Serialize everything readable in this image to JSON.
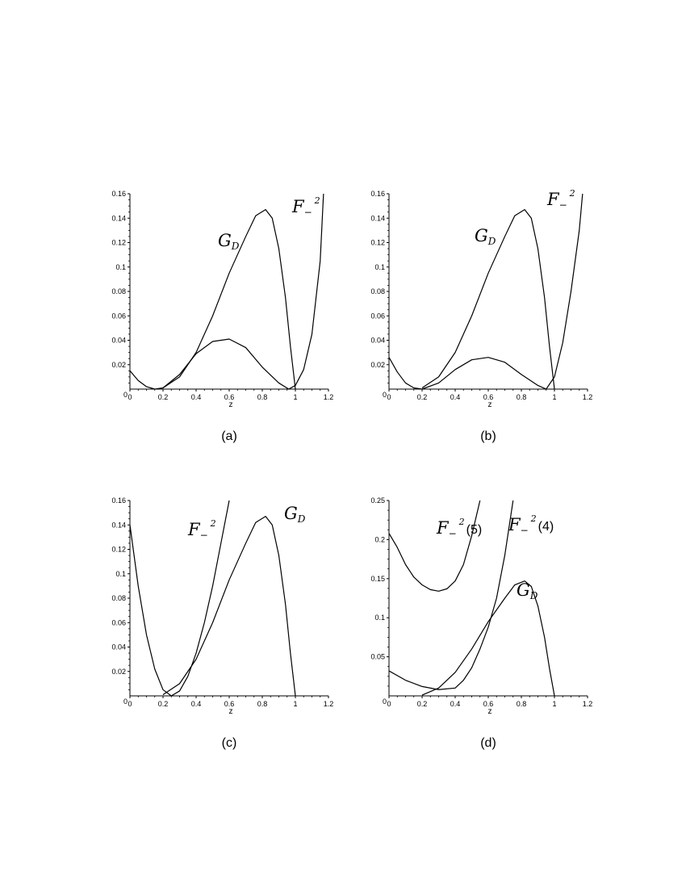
{
  "chart_data": [
    {
      "type": "line",
      "panel": "(a)",
      "caption": "(a)",
      "xlabel": "z",
      "ylabel": "",
      "xlim": [
        0,
        1.2
      ],
      "ylim": [
        0,
        0.16
      ],
      "x_ticks": [
        "0",
        "0.2",
        "0.4",
        "0.6",
        "0.8",
        "1",
        "1.2"
      ],
      "y_ticks": [
        "0.02",
        "0.04",
        "0.06",
        "0.08",
        "0.1",
        "0.12",
        "0.14",
        "0.16"
      ],
      "series": [
        {
          "name": "GD",
          "label_main": "G",
          "label_sub": "D",
          "color": "#000000",
          "x": [
            0.2,
            0.3,
            0.4,
            0.5,
            0.6,
            0.7,
            0.76,
            0.82,
            0.86,
            0.9,
            0.94,
            0.97,
            1.0
          ],
          "y": [
            0.001,
            0.01,
            0.03,
            0.06,
            0.095,
            0.125,
            0.142,
            0.147,
            0.14,
            0.115,
            0.075,
            0.035,
            0.0
          ]
        },
        {
          "name": "F-^2",
          "label_main": "F",
          "label_sub": "−",
          "label_sup": "2",
          "color": "#000000",
          "x": [
            0.0,
            0.05,
            0.1,
            0.15,
            0.2,
            0.3,
            0.4,
            0.5,
            0.6,
            0.7,
            0.8,
            0.9,
            0.96,
            1.0,
            1.05,
            1.1,
            1.15,
            1.17
          ],
          "y": [
            0.015,
            0.007,
            0.002,
            0.0,
            0.001,
            0.012,
            0.029,
            0.039,
            0.041,
            0.034,
            0.018,
            0.005,
            0.0,
            0.003,
            0.016,
            0.045,
            0.105,
            0.16
          ]
        }
      ]
    },
    {
      "type": "line",
      "panel": "(b)",
      "caption": "(b)",
      "xlabel": "z",
      "ylabel": "",
      "xlim": [
        0,
        1.2
      ],
      "ylim": [
        0,
        0.16
      ],
      "x_ticks": [
        "0",
        "0.2",
        "0.4",
        "0.6",
        "0.8",
        "1",
        "1.2"
      ],
      "y_ticks": [
        "0.02",
        "0.04",
        "0.06",
        "0.08",
        "0.1",
        "0.12",
        "0.14",
        "0.16"
      ],
      "series": [
        {
          "name": "GD",
          "label_main": "G",
          "label_sub": "D",
          "color": "#000000",
          "x": [
            0.2,
            0.3,
            0.4,
            0.5,
            0.6,
            0.7,
            0.76,
            0.82,
            0.86,
            0.9,
            0.94,
            0.97,
            1.0
          ],
          "y": [
            0.001,
            0.01,
            0.03,
            0.06,
            0.095,
            0.125,
            0.142,
            0.147,
            0.14,
            0.115,
            0.075,
            0.035,
            0.0
          ]
        },
        {
          "name": "F-^2",
          "label_main": "F",
          "label_sub": "−",
          "label_sup": "2",
          "color": "#000000",
          "x": [
            0.0,
            0.05,
            0.1,
            0.15,
            0.2,
            0.3,
            0.4,
            0.5,
            0.6,
            0.7,
            0.8,
            0.9,
            0.95,
            1.0,
            1.05,
            1.1,
            1.15,
            1.17
          ],
          "y": [
            0.026,
            0.014,
            0.005,
            0.001,
            0.0,
            0.005,
            0.016,
            0.024,
            0.026,
            0.022,
            0.012,
            0.003,
            0.0,
            0.01,
            0.038,
            0.08,
            0.13,
            0.16
          ]
        }
      ]
    },
    {
      "type": "line",
      "panel": "(c)",
      "caption": "(c)",
      "xlabel": "z",
      "ylabel": "",
      "xlim": [
        0,
        1.2
      ],
      "ylim": [
        0,
        0.16
      ],
      "x_ticks": [
        "0",
        "0.2",
        "0.4",
        "0.6",
        "0.8",
        "1",
        "1.2"
      ],
      "y_ticks": [
        "0.02",
        "0.04",
        "0.06",
        "0.08",
        "0.1",
        "0.12",
        "0.14",
        "0.16"
      ],
      "series": [
        {
          "name": "GD",
          "label_main": "G",
          "label_sub": "D",
          "color": "#000000",
          "x": [
            0.2,
            0.3,
            0.4,
            0.5,
            0.6,
            0.7,
            0.76,
            0.82,
            0.86,
            0.9,
            0.94,
            0.97,
            1.0
          ],
          "y": [
            0.001,
            0.01,
            0.03,
            0.06,
            0.095,
            0.125,
            0.142,
            0.147,
            0.14,
            0.115,
            0.075,
            0.035,
            0.0
          ]
        },
        {
          "name": "F-^2",
          "label_main": "F",
          "label_sub": "−",
          "label_sup": "2",
          "color": "#000000",
          "x": [
            0.0,
            0.05,
            0.1,
            0.15,
            0.2,
            0.25,
            0.3,
            0.35,
            0.4,
            0.45,
            0.5,
            0.55,
            0.6
          ],
          "y": [
            0.14,
            0.09,
            0.05,
            0.022,
            0.005,
            0.0,
            0.004,
            0.016,
            0.035,
            0.06,
            0.09,
            0.125,
            0.16
          ]
        }
      ]
    },
    {
      "type": "line",
      "panel": "(d)",
      "caption": "(d)",
      "xlabel": "z",
      "ylabel": "",
      "xlim": [
        0,
        1.2
      ],
      "ylim": [
        0,
        0.25
      ],
      "x_ticks": [
        "0",
        "0.2",
        "0.4",
        "0.6",
        "0.8",
        "1",
        "1.2"
      ],
      "y_ticks": [
        "0.05",
        "0.1",
        "0.15",
        "0.2",
        "0.25"
      ],
      "series": [
        {
          "name": "GD",
          "label_main": "G",
          "label_sub": "D",
          "color": "#000000",
          "x": [
            0.2,
            0.3,
            0.4,
            0.5,
            0.6,
            0.7,
            0.76,
            0.82,
            0.86,
            0.9,
            0.94,
            0.97,
            1.0
          ],
          "y": [
            0.001,
            0.01,
            0.03,
            0.06,
            0.095,
            0.125,
            0.142,
            0.147,
            0.14,
            0.115,
            0.075,
            0.035,
            0.0
          ]
        },
        {
          "name": "F-^2(5)",
          "label_main": "F",
          "label_sub": "−",
          "label_sup": "2",
          "label_suffix": "(5)",
          "color": "#000000",
          "x": [
            0.0,
            0.05,
            0.1,
            0.15,
            0.2,
            0.25,
            0.3,
            0.35,
            0.4,
            0.45,
            0.5,
            0.55
          ],
          "y": [
            0.208,
            0.19,
            0.168,
            0.152,
            0.142,
            0.136,
            0.134,
            0.137,
            0.147,
            0.168,
            0.205,
            0.25
          ]
        },
        {
          "name": "F-^2(4)",
          "label_main": "F",
          "label_sub": "−",
          "label_sup": "2",
          "label_suffix": "(4)",
          "color": "#000000",
          "x": [
            0.0,
            0.1,
            0.2,
            0.3,
            0.4,
            0.45,
            0.5,
            0.55,
            0.6,
            0.65,
            0.7,
            0.75
          ],
          "y": [
            0.032,
            0.02,
            0.012,
            0.008,
            0.01,
            0.02,
            0.036,
            0.06,
            0.088,
            0.125,
            0.18,
            0.25
          ]
        }
      ]
    }
  ]
}
